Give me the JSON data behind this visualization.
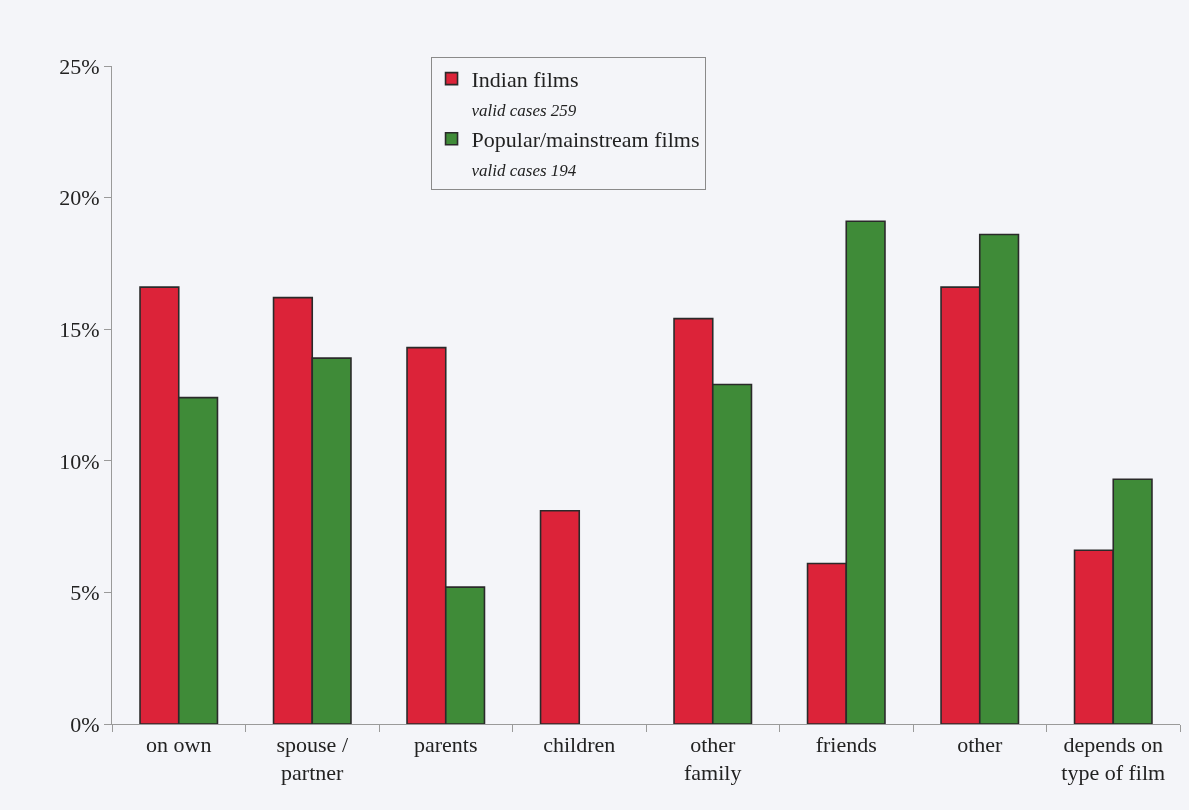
{
  "chart_data": {
    "type": "bar",
    "categories": [
      "on own",
      "spouse /\npartner",
      "parents",
      "children",
      "other\nfamily",
      "friends",
      "other",
      "depends on\ntype of film"
    ],
    "series": [
      {
        "name": "Indian films\nvalid cases 259",
        "color": "#dc2339",
        "values": [
          16.6,
          16.2,
          14.3,
          8.1,
          15.4,
          6.1,
          16.6,
          6.6
        ]
      },
      {
        "name": "Popular/mainstream films\nvalid cases 194",
        "color": "#3f8b38",
        "values": [
          12.4,
          13.9,
          5.2,
          null,
          12.9,
          19.1,
          18.6,
          9.3
        ]
      }
    ],
    "ylim": [
      0,
      25
    ],
    "yticks": [
      {
        "value": 0,
        "label": "0%"
      },
      {
        "value": 5,
        "label": "5%"
      },
      {
        "value": 10,
        "label": "10%"
      },
      {
        "value": 15,
        "label": "15%"
      },
      {
        "value": 20,
        "label": "20%"
      },
      {
        "value": 25,
        "label": "25%"
      }
    ],
    "grid": false,
    "legend": "top"
  }
}
